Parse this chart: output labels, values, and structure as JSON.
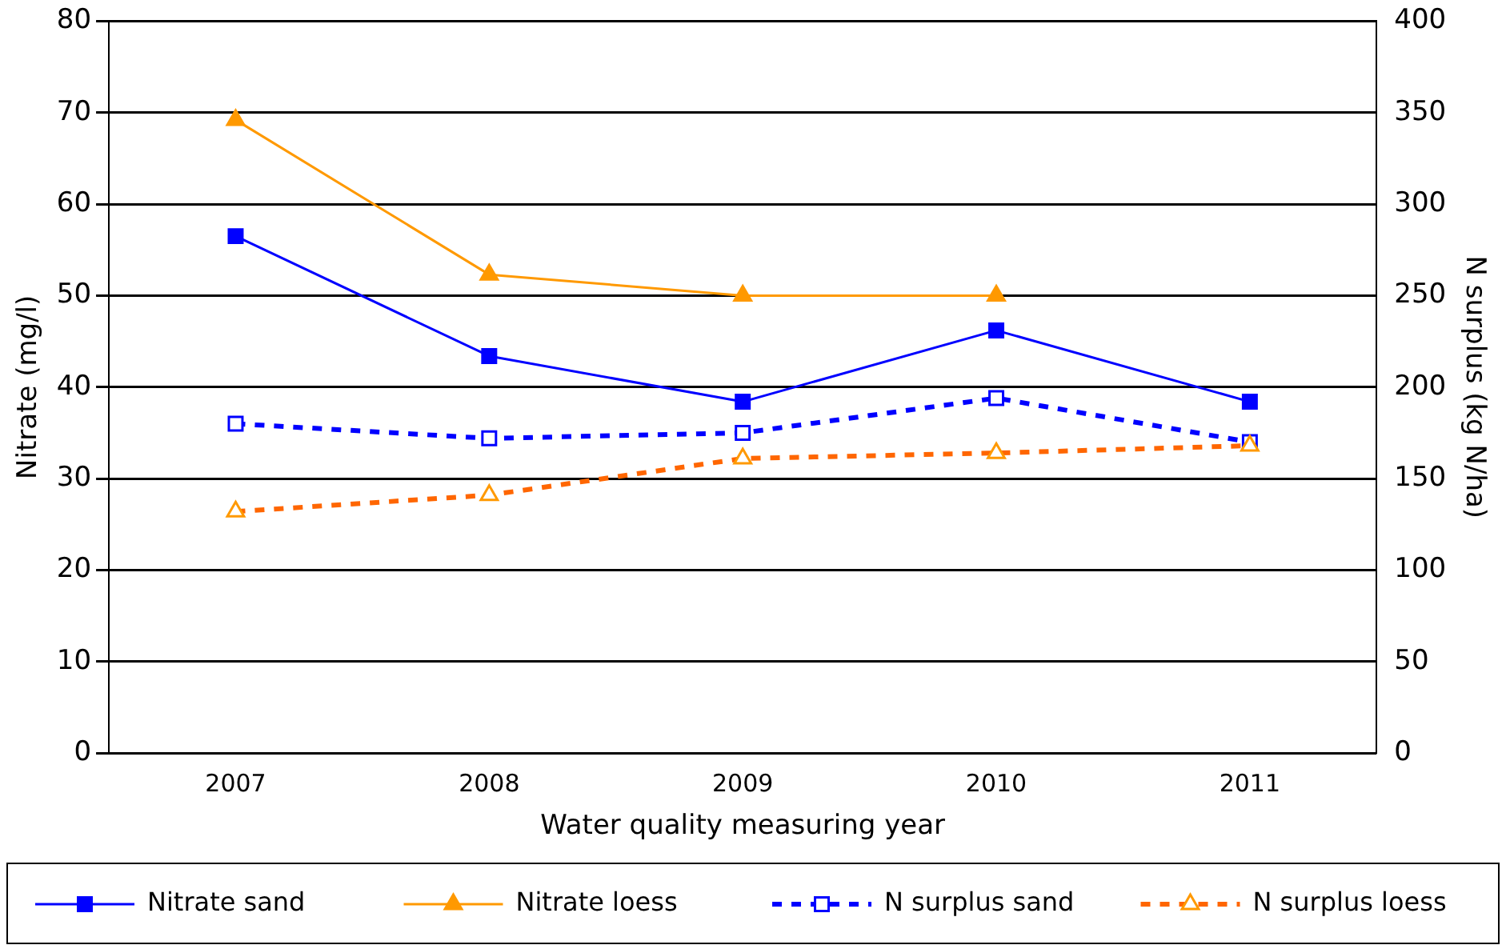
{
  "chart_data": {
    "type": "line",
    "xlabel": "Water quality measuring year",
    "ylabel": "Nitrate (mg/l)",
    "y2label": "N surplus (kg N/ha)",
    "categories": [
      "2007",
      "2008",
      "2009",
      "2010",
      "2011"
    ],
    "series": [
      {
        "name": "Nitrate sand",
        "color": "#0000ff",
        "marker": "square",
        "line_style": "solid",
        "values": [
          56.5,
          43.4,
          38.4,
          46.2,
          38.4
        ]
      },
      {
        "name": "Nitrate loess",
        "color": "#ff9900",
        "marker": "triangle",
        "line_style": "solid",
        "values": [
          69.2,
          52.3,
          50,
          50,
          null
        ]
      },
      {
        "name": "N surplus sand",
        "color": "#0000ff",
        "marker": "square",
        "line_style": "dashed",
        "axis": "y2",
        "values": [
          180,
          172,
          175,
          194,
          170
        ]
      },
      {
        "name": "N surplus loess",
        "color": "#ff6600",
        "marker": "triangle",
        "line_style": "dashed",
        "axis": "y2",
        "values": [
          132,
          141,
          161,
          164,
          168
        ]
      }
    ],
    "ylim": [
      0,
      80
    ],
    "yticks": [
      0,
      10,
      20,
      30,
      40,
      50,
      60,
      70,
      80
    ],
    "y2lim": [
      0,
      400
    ],
    "y2ticks": [
      0,
      50,
      100,
      150,
      200,
      250,
      300,
      350,
      400
    ],
    "grid": "y",
    "legend": "bottom"
  }
}
